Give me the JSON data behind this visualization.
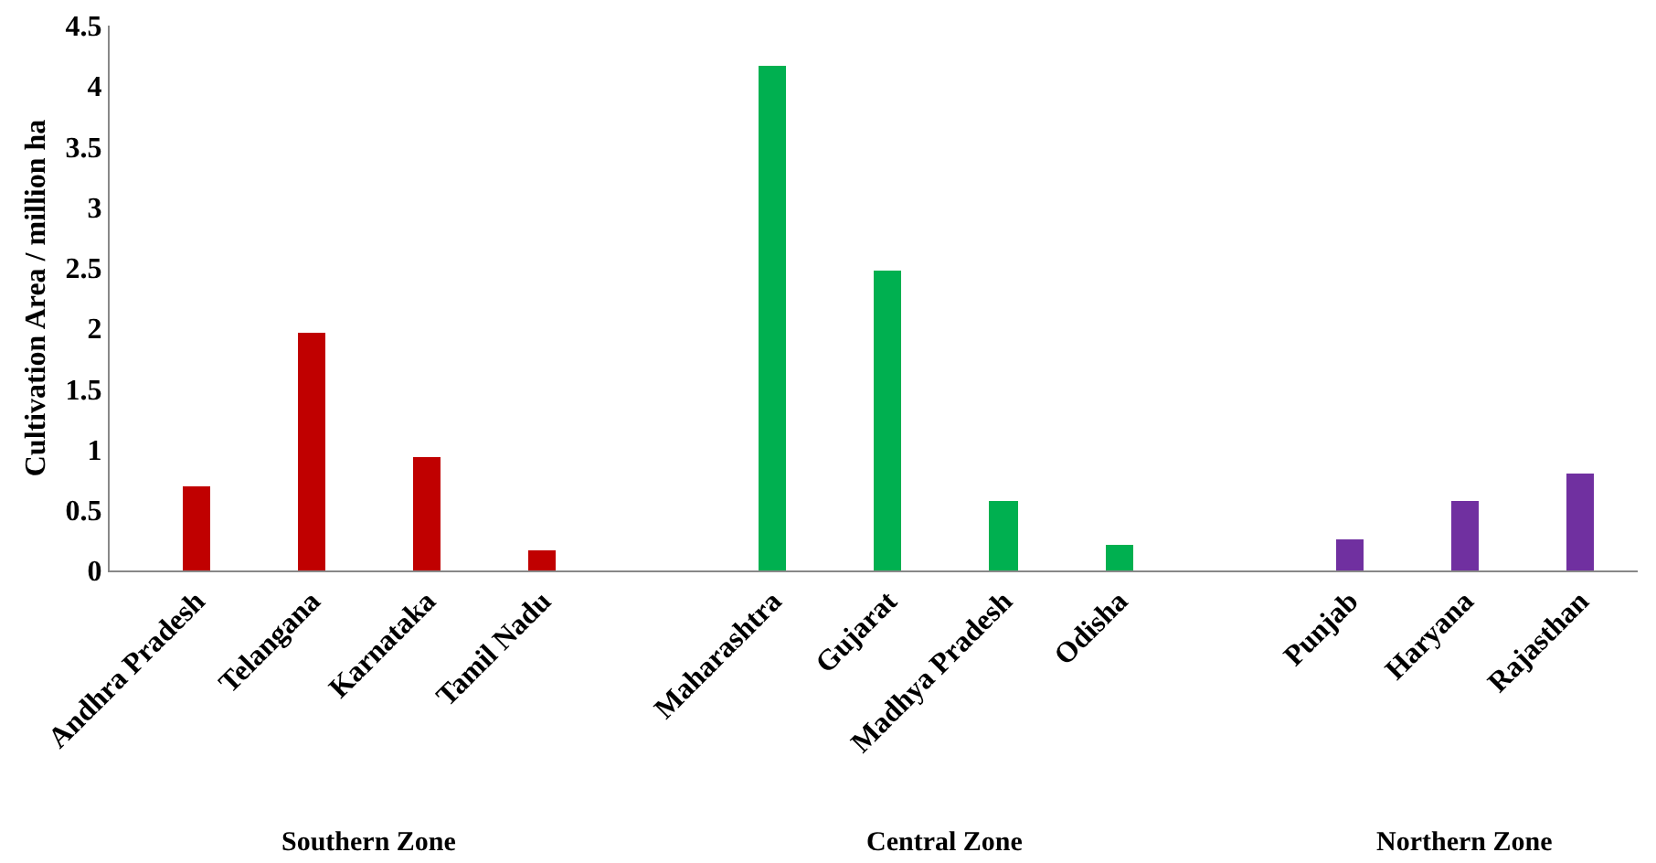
{
  "chart_data": {
    "type": "bar",
    "ylabel": "Cultivation Area / million ha",
    "categories": [
      "Andhra Pradesh",
      "Telangana",
      "Karnataka",
      "Tamil Nadu",
      null,
      "Maharashtra",
      "Gujarat",
      "Madhya Pradesh",
      "Odisha",
      null,
      "Punjab",
      "Haryana",
      "Rajasthan"
    ],
    "series": [
      {
        "color": "#c00000",
        "values": [
          0.7,
          1.97,
          0.94,
          0.17,
          null,
          null,
          null,
          null,
          null,
          null,
          null,
          null,
          null
        ]
      },
      {
        "color": "#00b050",
        "values": [
          null,
          null,
          null,
          null,
          null,
          4.17,
          2.48,
          0.58,
          0.21,
          null,
          null,
          null,
          null
        ]
      },
      {
        "color": "#7030a0",
        "values": [
          null,
          null,
          null,
          null,
          null,
          null,
          null,
          null,
          null,
          null,
          0.25,
          0.57,
          0.8
        ]
      }
    ],
    "annotations": [
      "Southern Zone",
      "Central Zone",
      "Northern Zone"
    ],
    "ylim": [
      0,
      4.5
    ],
    "yticks": [
      0,
      0.5,
      1,
      1.5,
      2,
      2.5,
      3,
      3.5,
      4,
      4.5
    ],
    "grid": false
  }
}
